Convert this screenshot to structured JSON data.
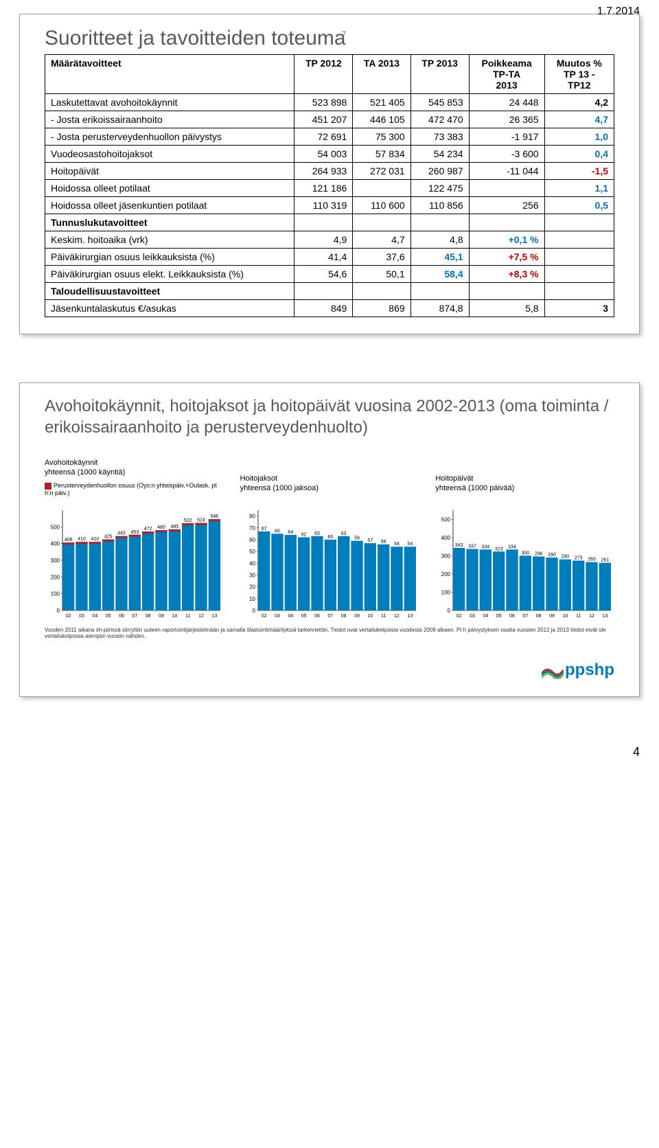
{
  "date_top": "1.7.2014",
  "page_number": "4",
  "panel1": {
    "title": "Suoritteet ja tavoitteiden toteuma",
    "title_index": "7",
    "columns": [
      "Määrätavoitteet",
      "TP 2012",
      "TA 2013",
      "TP 2013",
      "Poikkeama TP-TA 2013",
      "Muutos % TP 13 - TP12"
    ],
    "rows": [
      {
        "label": "Laskutettavat avohoitokäynnit",
        "c": [
          "523 898",
          "521 405",
          "545 853",
          "24 448",
          "4,2"
        ],
        "color": [
          "",
          "",
          "",
          "",
          ""
        ]
      },
      {
        "label": "- Josta erikoissairaanhoito",
        "c": [
          "451 207",
          "446 105",
          "472 470",
          "26 365",
          "4,7"
        ],
        "color": [
          "",
          "",
          "",
          "",
          "blue"
        ]
      },
      {
        "label": "- Josta perusterveydenhuollon päivystys",
        "c": [
          "72 691",
          "75 300",
          "73 383",
          "-1 917",
          "1,0"
        ],
        "color": [
          "",
          "",
          "",
          "",
          "blue"
        ]
      },
      {
        "label": "Vuodeosastohoitojaksot",
        "c": [
          "54 003",
          "57 834",
          "54 234",
          "-3 600",
          "0,4"
        ],
        "color": [
          "",
          "",
          "",
          "",
          "blue"
        ]
      },
      {
        "label": "Hoitopäivät",
        "c": [
          "264 933",
          "272 031",
          "260 987",
          "-11 044",
          "-1,5"
        ],
        "color": [
          "",
          "",
          "",
          "",
          "red"
        ]
      },
      {
        "label": "Hoidossa olleet potilaat",
        "c": [
          "121 186",
          "",
          "122 475",
          "",
          "1,1"
        ],
        "color": [
          "",
          "",
          "",
          "",
          "blue"
        ]
      },
      {
        "label": "Hoidossa olleet jäsenkuntien potilaat",
        "c": [
          "110 319",
          "110 600",
          "110 856",
          "256",
          "0,5"
        ],
        "color": [
          "",
          "",
          "",
          "",
          "blue"
        ]
      }
    ],
    "section_label": "Tunnuslukutavoitteet",
    "rows2": [
      {
        "label": "Keskim. hoitoaika (vrk)",
        "c": [
          "4,9",
          "4,7",
          "4,8",
          "+0,1 %",
          ""
        ],
        "color": [
          "",
          "",
          "",
          "blue",
          ""
        ]
      },
      {
        "label": "Päiväkirurgian osuus leikkauksista (%)",
        "c": [
          "41,4",
          "37,6",
          "45,1",
          "+7,5 %",
          ""
        ],
        "color": [
          "",
          "",
          "blue",
          "red",
          ""
        ]
      },
      {
        "label": "Päiväkirurgian osuus elekt. Leikkauksista (%)",
        "c": [
          "54,6",
          "50,1",
          "58,4",
          "+8,3 %",
          ""
        ],
        "color": [
          "",
          "",
          "blue",
          "red",
          ""
        ]
      }
    ],
    "section_label2": "Taloudellisuustavoitteet",
    "rows3": [
      {
        "label": "Jäsenkuntalaskutus €/asukas",
        "c": [
          "849",
          "869",
          "874,8",
          "5,8",
          "3"
        ],
        "color": [
          "",
          "",
          "",
          "",
          ""
        ]
      }
    ]
  },
  "panel2": {
    "title": "Avohoitokäynnit, hoitojaksot ja hoitopäivät vuosina 2002-2013 (oma toiminta / erikoissairaanhoito ja perusterveydenhuolto)",
    "footnote": "Vuoden 2011 aikana sh-piirissä siirryttiin uuteen raportointijärjestelmään ja samalla tilastointimäärityksiä tarkennettiin. Tiedot ovat vertailukelpoisia vuodesta 2009 alkaen. Pt h päivystyksen osalta vuosien 2012 ja 2013 tiedot eivät ole vertailukelpoisia aiempiin vuosiin nähden.",
    "charts": [
      {
        "title": "Avohoitokäynnit",
        "subtitle": "yhteensä (1000 käyntiä)",
        "legend": "Perusterveydenhuollon osuus (Oys:n yhteispäiv.+Oulask. pt h:n päiv.)",
        "categories": [
          "02",
          "03",
          "04",
          "05",
          "06",
          "07",
          "08",
          "09",
          "10",
          "11",
          "12",
          "13"
        ],
        "values": [
          406,
          410,
          410,
          425,
          445,
          453,
          472,
          480,
          485,
          522,
          524,
          546
        ],
        "secondary": [
          1,
          1,
          1,
          1,
          1,
          1,
          1,
          1,
          1,
          1,
          1,
          1
        ],
        "ymax": 600,
        "yticks": [
          0,
          100,
          200,
          300,
          400,
          500
        ],
        "bar_color": "#007dba",
        "secondary_color": "#b22222"
      },
      {
        "title": "Hoitojaksot",
        "subtitle": "yhteensä (1000 jaksoa)",
        "categories": [
          "02",
          "03",
          "04",
          "05",
          "06",
          "07",
          "08",
          "09",
          "10",
          "11",
          "12",
          "13"
        ],
        "values": [
          67,
          65,
          64,
          62,
          63,
          60,
          63,
          59,
          57,
          56,
          54,
          54
        ],
        "ymax": 85,
        "yticks": [
          0,
          10,
          20,
          30,
          40,
          50,
          60,
          70,
          80
        ],
        "bar_color": "#007dba"
      },
      {
        "title": "Hoitopäivät",
        "subtitle": "yhteensä (1000 päivää)",
        "categories": [
          "02",
          "03",
          "04",
          "05",
          "06",
          "07",
          "08",
          "09",
          "10",
          "11",
          "12",
          "13"
        ],
        "values": [
          343,
          337,
          334,
          323,
          334,
          300,
          296,
          290,
          280,
          273,
          265,
          261
        ],
        "ymax": 550,
        "yticks": [
          0,
          100,
          200,
          300,
          400,
          500
        ],
        "bar_color": "#007dba"
      }
    ]
  },
  "logo_text": "ppshp",
  "logo_colors": [
    "#d2232a",
    "#007dba",
    "#7ac143"
  ]
}
